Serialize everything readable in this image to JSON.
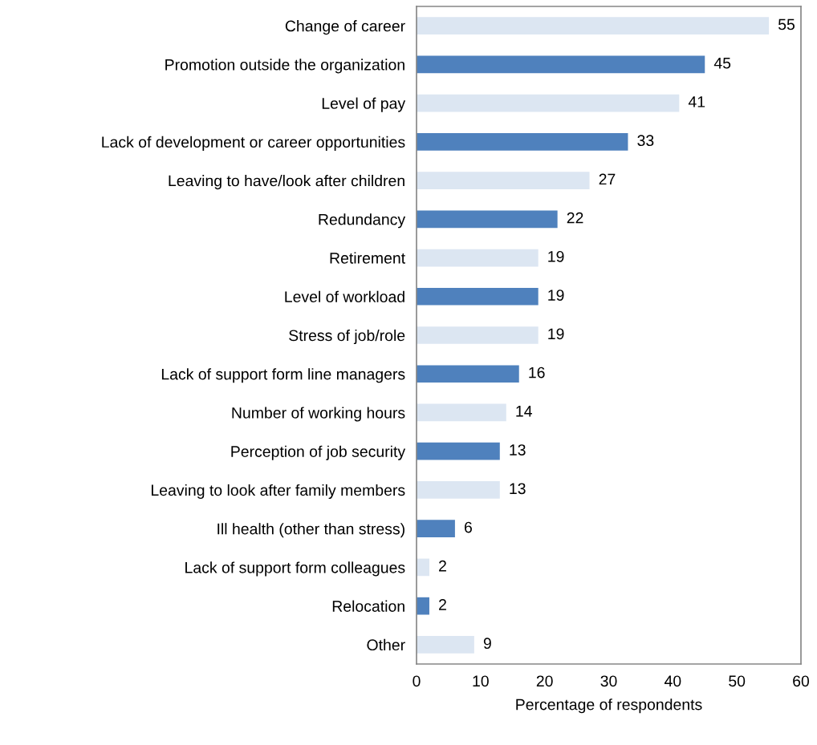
{
  "chart_data": {
    "type": "bar",
    "orientation": "horizontal",
    "xlabel": "Percentage of respondents",
    "categories": [
      "Change of career",
      "Promotion outside the organization",
      "Level of pay",
      "Lack of development or career opportunities",
      "Leaving to have/look after children",
      "Redundancy",
      "Retirement",
      "Level of workload",
      "Stress of job/role",
      "Lack of support form line managers",
      "Number of working hours",
      "Perception of job security",
      "Leaving to look after family members",
      "Ill health (other than stress)",
      "Lack of support form colleagues",
      "Relocation",
      "Other"
    ],
    "values": [
      55,
      45,
      41,
      33,
      27,
      22,
      19,
      19,
      19,
      16,
      14,
      13,
      13,
      6,
      2,
      2,
      9
    ],
    "colors": [
      "#dce6f2",
      "#4f81bd",
      "#dce6f2",
      "#4f81bd",
      "#dce6f2",
      "#4f81bd",
      "#dce6f2",
      "#4f81bd",
      "#dce6f2",
      "#4f81bd",
      "#dce6f2",
      "#4f81bd",
      "#dce6f2",
      "#4f81bd",
      "#dce6f2",
      "#4f81bd",
      "#dce6f2"
    ],
    "xlim": [
      0,
      60
    ],
    "xticks": [
      0,
      10,
      20,
      30,
      40,
      50,
      60
    ],
    "data_labels": true,
    "grid": false,
    "legend": false
  }
}
